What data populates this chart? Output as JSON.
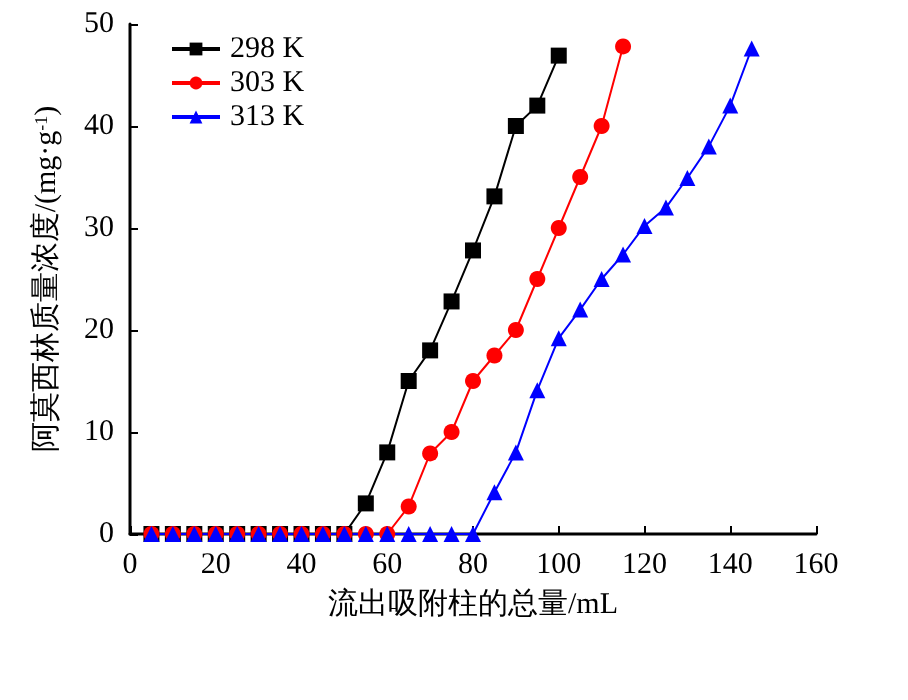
{
  "chart_data": {
    "type": "line",
    "xlabel": "流出吸附柱的总量/mL",
    "ylabel": "阿莫西林质量浓度/(mg·g$^{-1}$)",
    "xlim": [
      0,
      160
    ],
    "xticks": [
      0,
      20,
      40,
      60,
      80,
      100,
      120,
      140,
      160
    ],
    "ylim": [
      0,
      50
    ],
    "yticks": [
      0,
      10,
      20,
      30,
      40,
      50
    ],
    "grid": false,
    "legend": "top left",
    "line_style": "solid",
    "series": [
      {
        "name": "298 K",
        "color": "#000000",
        "marker": "square",
        "x": [
          5,
          10,
          15,
          20,
          25,
          30,
          35,
          40,
          45,
          50,
          55,
          60,
          65,
          70,
          75,
          80,
          85,
          90,
          95,
          100
        ],
        "values": [
          0,
          0,
          0,
          0,
          0,
          0,
          0,
          0,
          0,
          0,
          3,
          8,
          15,
          18,
          22.8,
          27.8,
          33.1,
          40,
          42,
          46.9
        ]
      },
      {
        "name": "303 K",
        "color": "#ff0000",
        "marker": "circle",
        "x": [
          5,
          10,
          15,
          20,
          25,
          30,
          35,
          40,
          45,
          50,
          55,
          60,
          65,
          70,
          75,
          80,
          85,
          90,
          95,
          100,
          105,
          110,
          115
        ],
        "values": [
          0,
          0,
          0,
          0,
          0,
          0,
          0,
          0,
          0,
          0,
          0,
          0,
          2.7,
          7.9,
          10,
          15,
          17.5,
          20,
          25,
          30,
          35,
          40,
          47.8
        ]
      },
      {
        "name": "313 K",
        "color": "#0000ff",
        "marker": "triangle",
        "x": [
          5,
          10,
          15,
          20,
          25,
          30,
          35,
          40,
          45,
          50,
          55,
          60,
          65,
          70,
          75,
          80,
          85,
          90,
          95,
          100,
          105,
          110,
          115,
          120,
          125,
          130,
          135,
          140,
          145
        ],
        "values": [
          0,
          0,
          0,
          0,
          0,
          0,
          0,
          0,
          0,
          0,
          0,
          0,
          0,
          0,
          0,
          0,
          4.1,
          8,
          14.1,
          19.2,
          22,
          25,
          27.4,
          30.2,
          32,
          34.9,
          38,
          42,
          47.6
        ]
      }
    ]
  }
}
